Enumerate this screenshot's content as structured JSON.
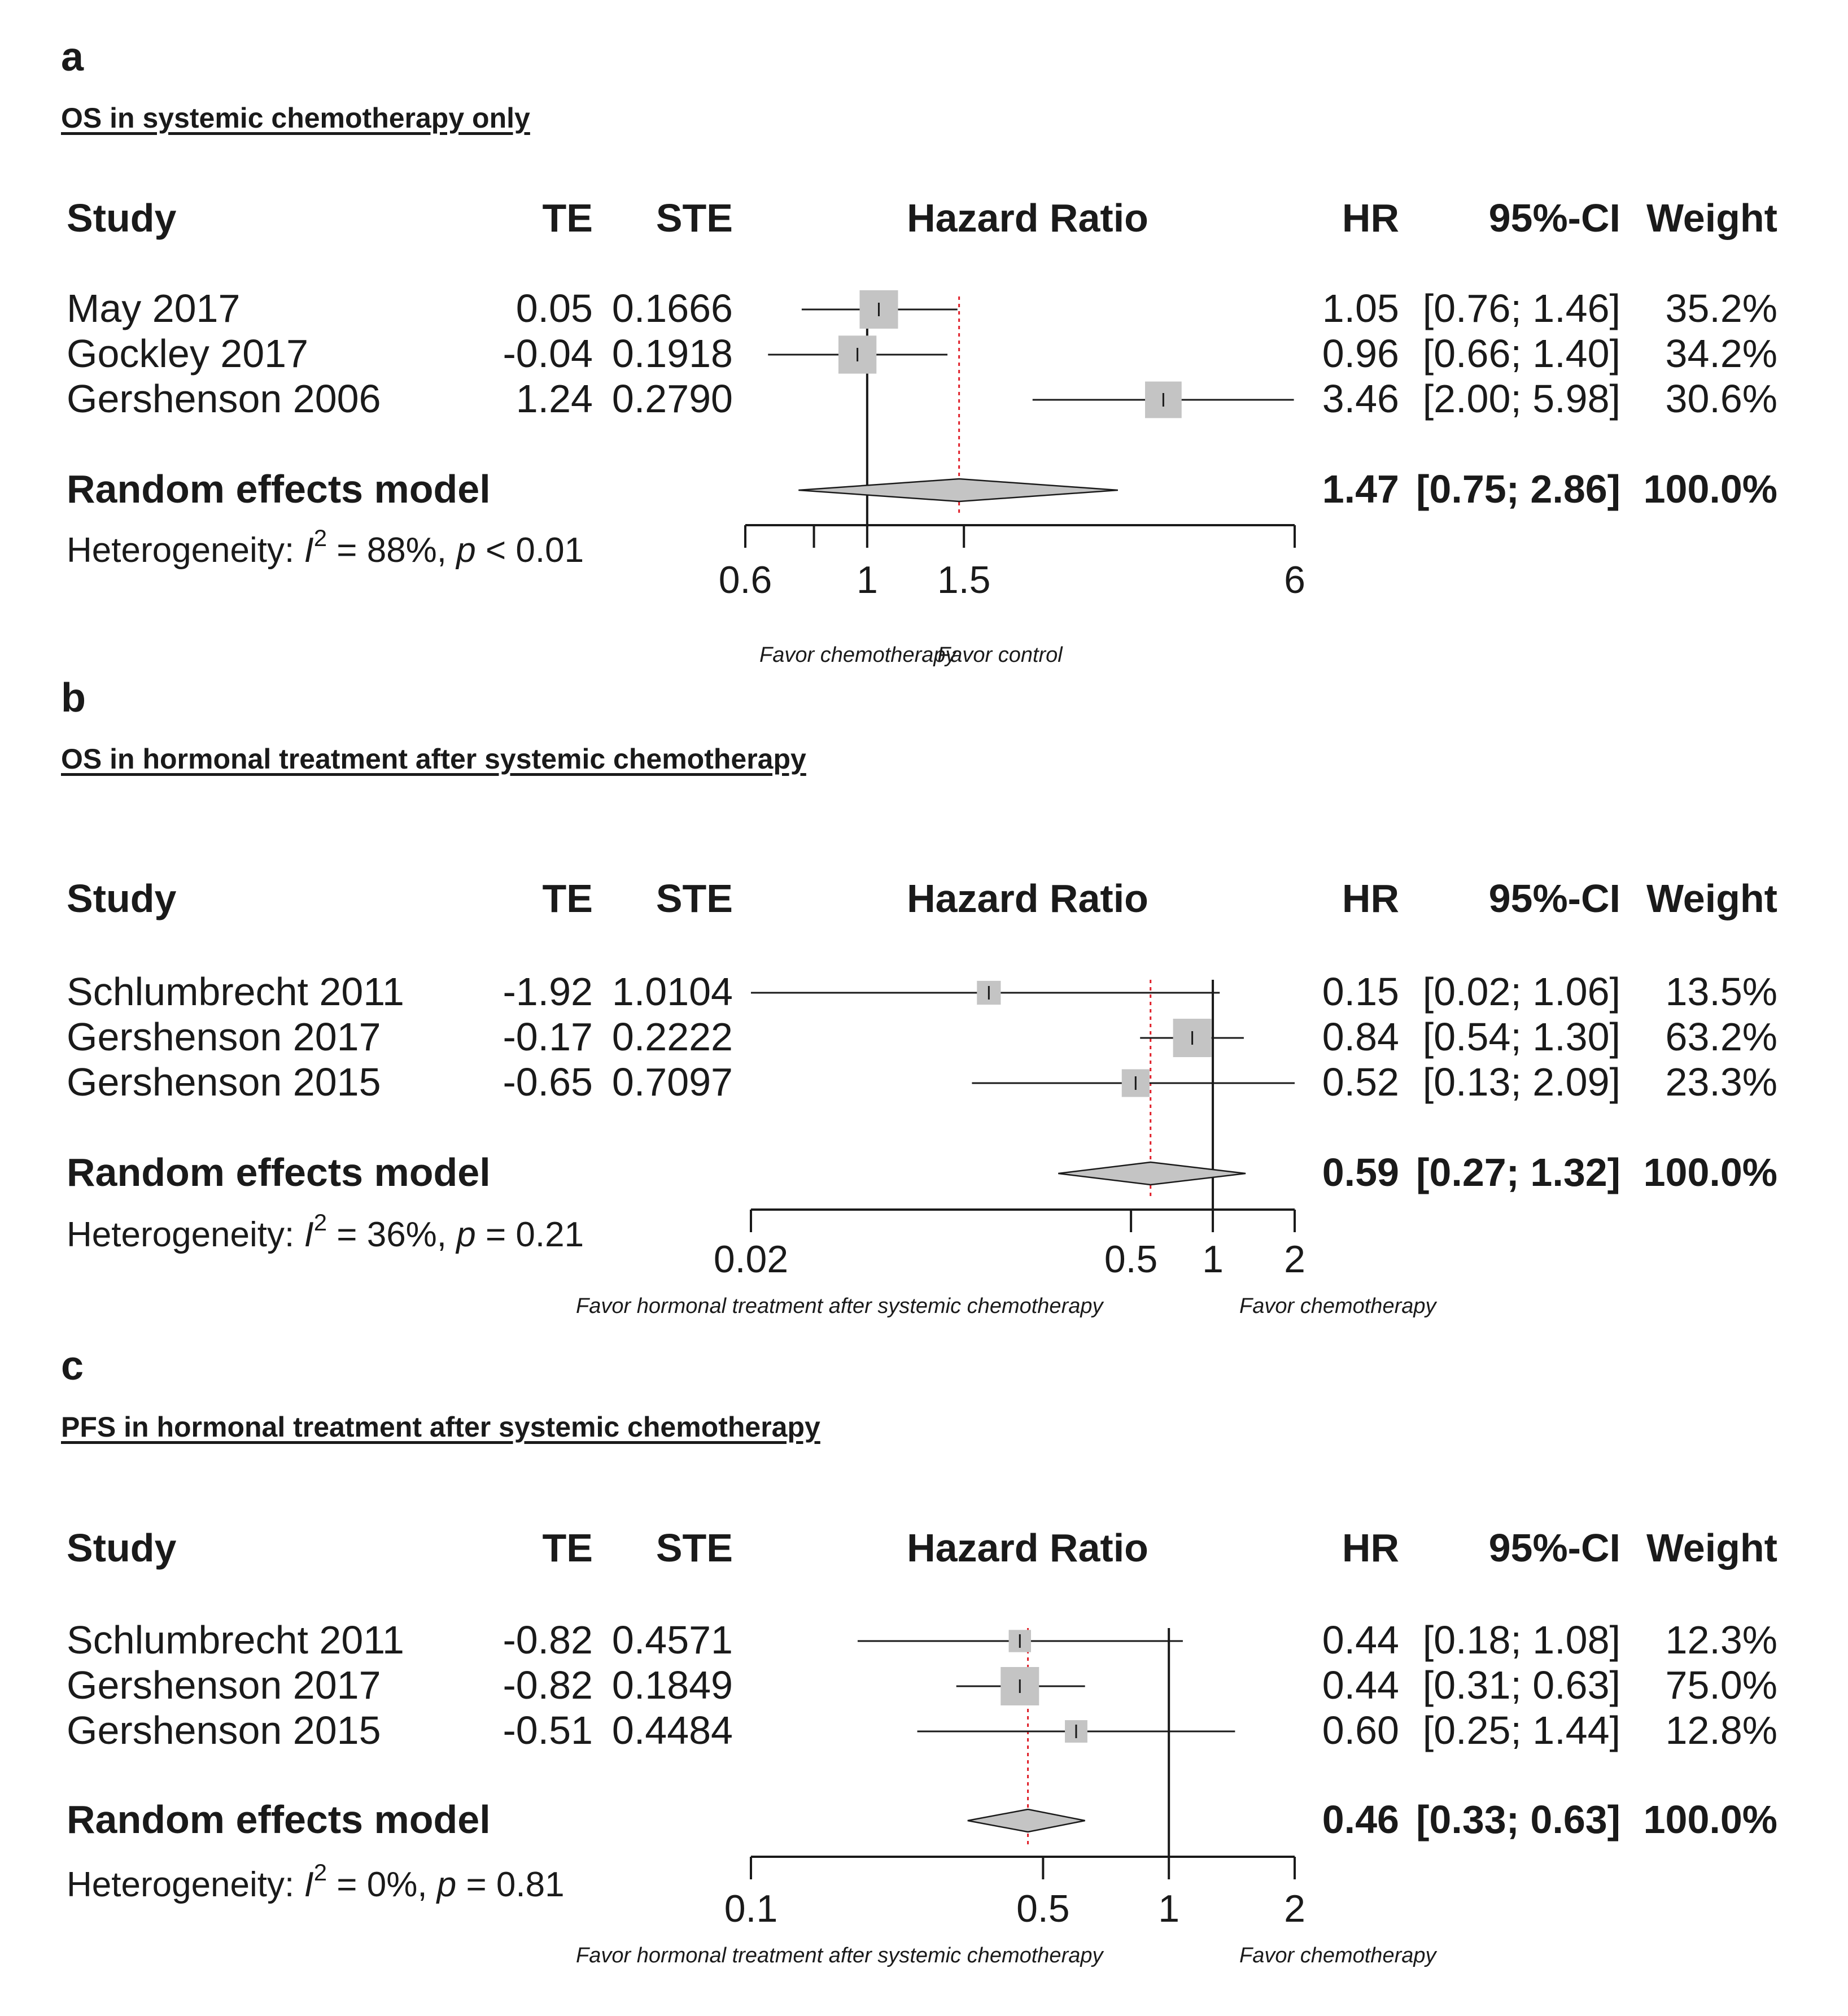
{
  "chart_data": [
    {
      "type": "forest",
      "panel": "a",
      "title": "OS in systemic chemotherapy only",
      "headers": {
        "study": "Study",
        "te": "TE",
        "ste": "STE",
        "plot": "Hazard Ratio",
        "hr": "HR",
        "ci": "95%-CI",
        "weight": "Weight"
      },
      "studies": [
        {
          "study": "May 2017",
          "te": "0.05",
          "ste": "0.1666",
          "hr": "1.05",
          "ci": "[0.76; 1.46]",
          "weight": "35.2%",
          "hr_val": 1.05,
          "lo": 0.76,
          "hi": 1.46,
          "w": 35.2
        },
        {
          "study": "Gockley 2017",
          "te": "-0.04",
          "ste": "0.1918",
          "hr": "0.96",
          "ci": "[0.66; 1.40]",
          "weight": "34.2%",
          "hr_val": 0.96,
          "lo": 0.66,
          "hi": 1.4,
          "w": 34.2
        },
        {
          "study": "Gershenson 2006",
          "te": "1.24",
          "ste": "0.2790",
          "hr": "3.46",
          "ci": "[2.00; 5.98]",
          "weight": "30.6%",
          "hr_val": 3.46,
          "lo": 2.0,
          "hi": 5.98,
          "w": 30.6
        }
      ],
      "model": {
        "label": "Random effects model",
        "hr": "1.47",
        "ci": "[0.75; 2.86]",
        "weight": "100.0%",
        "hr_val": 1.47,
        "lo": 0.75,
        "hi": 2.86
      },
      "heterogeneity": {
        "prefix": "Heterogeneity: ",
        "i": "I",
        "sup": "2",
        "text": " = 88%, ",
        "p": "p",
        "ptext": " < 0.01"
      },
      "axis": {
        "scale": "log",
        "range": [
          0.6,
          6
        ],
        "ticks": [
          0.6,
          0.8,
          1,
          1.5,
          6
        ],
        "tick_labels": [
          "0.6",
          "",
          "1",
          "1.5",
          "6"
        ]
      },
      "favor_left": "Favor chemotherapy",
      "favor_right": "Favor control"
    },
    {
      "type": "forest",
      "panel": "b",
      "title": "OS in hormonal treatment after systemic chemotherapy",
      "headers": {
        "study": "Study",
        "te": "TE",
        "ste": "STE",
        "plot": "Hazard Ratio",
        "hr": "HR",
        "ci": "95%-CI",
        "weight": "Weight"
      },
      "studies": [
        {
          "study": "Schlumbrecht  2011",
          "te": "-1.92",
          "ste": "1.0104",
          "hr": "0.15",
          "ci": "[0.02; 1.06]",
          "weight": "13.5%",
          "hr_val": 0.15,
          "lo": 0.02,
          "hi": 1.06,
          "w": 13.5
        },
        {
          "study": "Gershenson 2017",
          "te": "-0.17",
          "ste": "0.2222",
          "hr": "0.84",
          "ci": "[0.54; 1.30]",
          "weight": "63.2%",
          "hr_val": 0.84,
          "lo": 0.54,
          "hi": 1.3,
          "w": 63.2
        },
        {
          "study": "Gershenson 2015",
          "te": "-0.65",
          "ste": "0.7097",
          "hr": "0.52",
          "ci": "[0.13; 2.09]",
          "weight": "23.3%",
          "hr_val": 0.52,
          "lo": 0.13,
          "hi": 2.09,
          "w": 23.3
        }
      ],
      "model": {
        "label": "Random effects model",
        "hr": "0.59",
        "ci": "[0.27; 1.32]",
        "weight": "100.0%",
        "hr_val": 0.59,
        "lo": 0.27,
        "hi": 1.32
      },
      "heterogeneity": {
        "prefix": "Heterogeneity: ",
        "i": "I",
        "sup": "2",
        "text": " = 36%, ",
        "p": "p",
        "ptext": " = 0.21"
      },
      "axis": {
        "scale": "log",
        "range": [
          0.02,
          2
        ],
        "ticks": [
          0.02,
          0.5,
          1,
          2
        ],
        "tick_labels": [
          "0.02",
          "0.5",
          "1",
          "2"
        ]
      },
      "favor_left": "Favor hormonal treatment after systemic chemotherapy",
      "favor_right": "Favor chemotherapy"
    },
    {
      "type": "forest",
      "panel": "c",
      "title": "PFS in hormonal treatment after systemic chemotherapy",
      "headers": {
        "study": "Study",
        "te": "TE",
        "ste": "STE",
        "plot": "Hazard Ratio",
        "hr": "HR",
        "ci": "95%-CI",
        "weight": "Weight"
      },
      "studies": [
        {
          "study": "Schlumbrecht  2011",
          "te": "-0.82",
          "ste": "0.4571",
          "hr": "0.44",
          "ci": "[0.18; 1.08]",
          "weight": "12.3%",
          "hr_val": 0.44,
          "lo": 0.18,
          "hi": 1.08,
          "w": 12.3
        },
        {
          "study": "Gershenson 2017",
          "te": "-0.82",
          "ste": "0.1849",
          "hr": "0.44",
          "ci": "[0.31; 0.63]",
          "weight": "75.0%",
          "hr_val": 0.44,
          "lo": 0.31,
          "hi": 0.63,
          "w": 75.0
        },
        {
          "study": "Gershenson 2015",
          "te": "-0.51",
          "ste": "0.4484",
          "hr": "0.60",
          "ci": "[0.25; 1.44]",
          "weight": "12.8%",
          "hr_val": 0.6,
          "lo": 0.25,
          "hi": 1.44,
          "w": 12.8
        }
      ],
      "model": {
        "label": "Random effects model",
        "hr": "0.46",
        "ci": "[0.33; 0.63]",
        "weight": "100.0%",
        "hr_val": 0.46,
        "lo": 0.33,
        "hi": 0.63
      },
      "heterogeneity": {
        "prefix": "Heterogeneity: ",
        "i": "I",
        "sup": "2",
        "text": " = 0%, ",
        "p": "p",
        "ptext": " = 0.81"
      },
      "axis": {
        "scale": "log",
        "range": [
          0.1,
          2
        ],
        "ticks": [
          0.1,
          0.5,
          1,
          2
        ],
        "tick_labels": [
          "0.1",
          "0.5",
          "1",
          "2"
        ]
      },
      "favor_left": "Favor hormonal treatment after systemic chemotherapy",
      "favor_right": "Favor chemotherapy"
    }
  ],
  "colors": {
    "text": "#1a1a1a",
    "square": "#c4c4c4",
    "diamond": "#c4c4c4",
    "line": "#1a1a1a",
    "pooled_line": "#e0202a"
  }
}
